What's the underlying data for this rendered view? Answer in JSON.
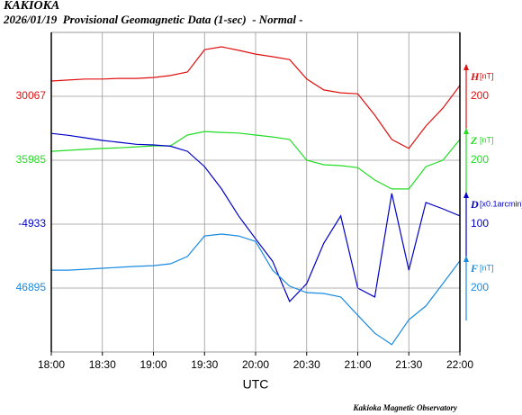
{
  "chart_data": {
    "type": "line",
    "title": "KAKIOKA",
    "subtitle": "2026/01/19  Provisional Geomagnetic Data (1-sec)  - Normal -",
    "xlabel": "UTC",
    "footer": "Kakioka Magnetic Observatory",
    "xlim": [
      "18:00",
      "22:00"
    ],
    "xticks": [
      "18:00",
      "18:30",
      "19:00",
      "19:30",
      "20:00",
      "20:30",
      "21:00",
      "21:30",
      "22:00"
    ],
    "grid": true,
    "x": [
      "18:00",
      "18:10",
      "18:20",
      "18:30",
      "18:40",
      "18:50",
      "19:00",
      "19:10",
      "19:20",
      "19:30",
      "19:40",
      "19:50",
      "20:00",
      "20:10",
      "20:20",
      "20:30",
      "20:40",
      "20:50",
      "21:00",
      "21:10",
      "21:20",
      "21:30",
      "21:40",
      "21:50",
      "22:00"
    ],
    "series": [
      {
        "name": "H",
        "unit": "[nT]",
        "color": "#e01010",
        "baseline": 30067,
        "scale": 200,
        "values": [
          30115,
          30118,
          30121,
          30121,
          30123,
          30123,
          30126,
          30132,
          30143,
          30213,
          30222,
          30211,
          30199,
          30191,
          30182,
          30121,
          30087,
          30078,
          30075,
          30008,
          29932,
          29904,
          29974,
          30030,
          30101
        ]
      },
      {
        "name": "Z",
        "unit": "[nT]",
        "color": "#22dd22",
        "baseline": 35985,
        "scale": 200,
        "values": [
          36013,
          36016,
          36019,
          36022,
          36024,
          36027,
          36030,
          36030,
          36064,
          36075,
          36072,
          36070,
          36064,
          36058,
          36050,
          35985,
          35971,
          35968,
          35962,
          35923,
          35895,
          35895,
          35965,
          35985,
          36050
        ]
      },
      {
        "name": "D",
        "unit": "[x0.1arcmin]",
        "color": "#0000c8",
        "baseline": -4933,
        "scale": 100,
        "values": [
          -4791,
          -4794,
          -4798,
          -4802,
          -4805,
          -4808,
          -4809,
          -4811,
          -4819,
          -4843,
          -4878,
          -4920,
          -4956,
          -4991,
          -5054,
          -5026,
          -4963,
          -4920,
          -5033,
          -5047,
          -4885,
          -5005,
          -4899,
          -4909,
          -4920
        ]
      },
      {
        "name": "F",
        "unit": "[nT]",
        "color": "#1a8ae0",
        "baseline": 46895,
        "scale": 200,
        "values": [
          46951,
          46951,
          46954,
          46957,
          46960,
          46963,
          46965,
          46971,
          46994,
          47058,
          47064,
          47058,
          47041,
          46951,
          46901,
          46881,
          46878,
          46867,
          46810,
          46754,
          46718,
          46796,
          46839,
          46909,
          46980
        ]
      }
    ]
  }
}
